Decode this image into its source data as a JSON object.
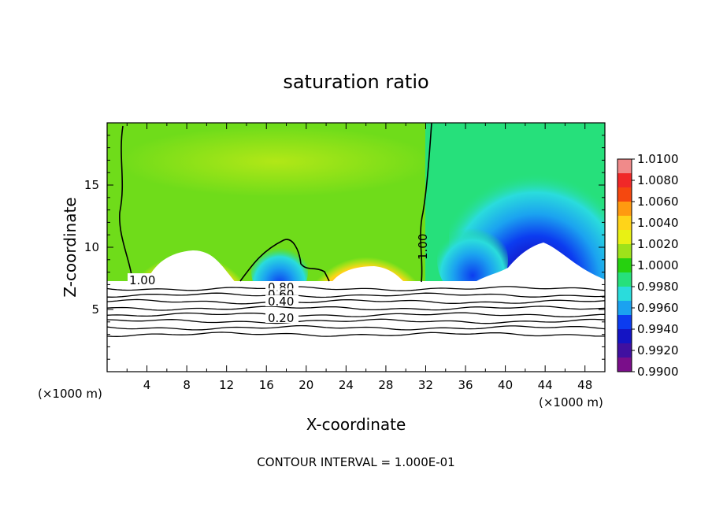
{
  "chart_data": {
    "type": "heatmap",
    "title": "saturation ratio",
    "xlabel": "X-coordinate",
    "ylabel": "Z-coordinate",
    "x_unit_left": "(×1000 m)",
    "x_unit_right": "(×1000 m)",
    "footer": "CONTOUR INTERVAL = 1.000E-01",
    "xlim": [
      0,
      50
    ],
    "ylim": [
      0,
      20
    ],
    "x_ticks": [
      "4",
      "8",
      "12",
      "16",
      "20",
      "24",
      "28",
      "32",
      "36",
      "40",
      "44",
      "48"
    ],
    "x_tick_values": [
      4,
      8,
      12,
      16,
      20,
      24,
      28,
      32,
      36,
      40,
      44,
      48
    ],
    "y_ticks": [
      "5",
      "10",
      "15"
    ],
    "y_tick_values": [
      5,
      10,
      15
    ],
    "colorbar": {
      "labels": [
        "1.0100",
        "1.0080",
        "1.0060",
        "1.0040",
        "1.0020",
        "1.0000",
        "0.9980",
        "0.9960",
        "0.9940",
        "0.9920",
        "0.9900"
      ],
      "levels": [
        1.01,
        1.008,
        1.006,
        1.004,
        1.002,
        1.0,
        0.998,
        0.996,
        0.994,
        0.992,
        0.99
      ],
      "colors": [
        "#f08a8a",
        "#f02828",
        "#f5480f",
        "#ff9a10",
        "#ffd419",
        "#e8f114",
        "#9ee21a",
        "#26d10f",
        "#26e07b",
        "#2adcdc",
        "#1ba2f0",
        "#0c3cf0",
        "#1414c4",
        "#4010a0",
        "#7a0e8a"
      ]
    },
    "contour_labels": [
      "1.00",
      "1.00",
      "0.80",
      "0.60",
      "0.40",
      "0.20"
    ],
    "contour_label_values": [
      1.0,
      1.0,
      0.8,
      0.6,
      0.4,
      0.2
    ],
    "saturated_layer_top_z": 7.2,
    "subsaturated_contour_levels": [
      0.2,
      0.3,
      0.4,
      0.5,
      0.6,
      0.7,
      0.8,
      0.9
    ]
  }
}
